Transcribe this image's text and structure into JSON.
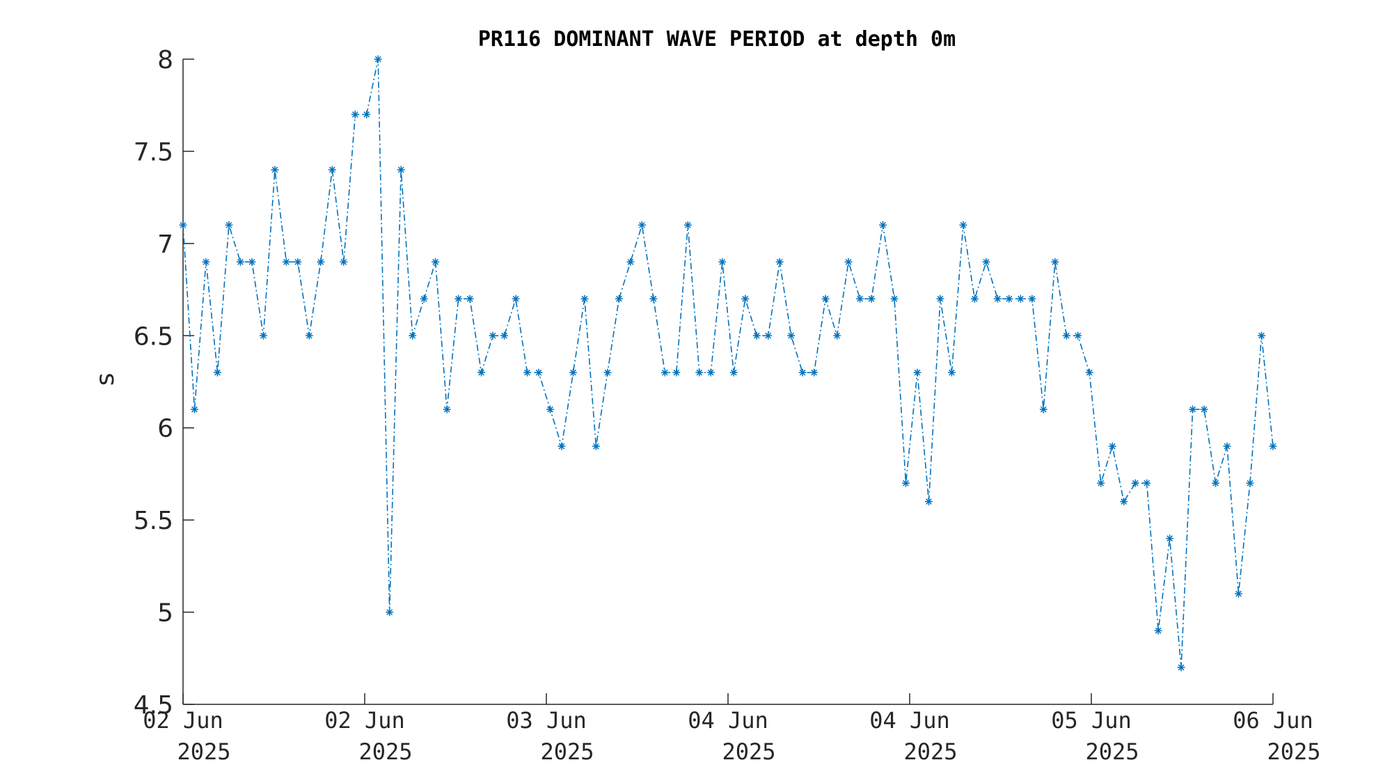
{
  "chart_data": {
    "type": "line",
    "title": "PR116 DOMINANT WAVE PERIOD at depth 0m",
    "xlabel": "",
    "ylabel": "s",
    "ylim": [
      4.5,
      8
    ],
    "yticks": [
      4.5,
      5,
      5.5,
      6,
      6.5,
      7,
      7.5,
      8
    ],
    "ytick_labels": [
      "4.5",
      "5",
      "5.5",
      "6",
      "6.5",
      "7",
      "7.5",
      "8"
    ],
    "xtick_labels": [
      [
        "02 Jun",
        "2025"
      ],
      [
        "02 Jun",
        "2025"
      ],
      [
        "03 Jun",
        "2025"
      ],
      [
        "04 Jun",
        "2025"
      ],
      [
        "04 Jun",
        "2025"
      ],
      [
        "05 Jun",
        "2025"
      ],
      [
        "06 Jun",
        "2025"
      ]
    ],
    "grid": false,
    "line_style": "dash-dot",
    "marker": "asterisk",
    "color": "#0072BD",
    "series": [
      {
        "values": [
          7.1,
          6.1,
          6.9,
          6.3,
          7.1,
          6.9,
          6.9,
          6.5,
          7.4,
          6.9,
          6.9,
          6.5,
          6.9,
          7.4,
          6.9,
          7.7,
          7.7,
          8.0,
          5.0,
          7.4,
          6.5,
          6.7,
          6.9,
          6.1,
          6.7,
          6.7,
          6.3,
          6.5,
          6.5,
          6.7,
          6.3,
          6.3,
          6.1,
          5.9,
          6.3,
          6.7,
          5.9,
          6.3,
          6.7,
          6.9,
          7.1,
          6.7,
          6.3,
          6.3,
          7.1,
          6.3,
          6.3,
          6.9,
          6.3,
          6.7,
          6.5,
          6.5,
          6.9,
          6.5,
          6.3,
          6.3,
          6.7,
          6.5,
          6.9,
          6.7,
          6.7,
          7.1,
          6.7,
          5.7,
          6.3,
          5.6,
          6.7,
          6.3,
          7.1,
          6.7,
          6.9,
          6.7,
          6.7,
          6.7,
          6.7,
          6.1,
          6.9,
          6.5,
          6.5,
          6.3,
          5.7,
          5.9,
          5.6,
          5.7,
          5.7,
          4.9,
          5.4,
          4.7,
          6.1,
          6.1,
          5.7,
          5.9,
          5.1,
          5.7,
          6.5,
          5.9
        ]
      }
    ]
  }
}
